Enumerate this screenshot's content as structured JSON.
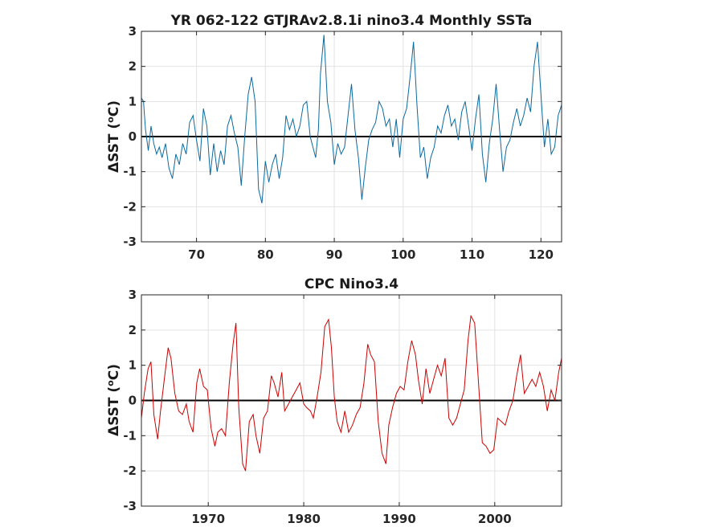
{
  "figure": {
    "background": "#ffffff"
  },
  "chart_data": [
    {
      "type": "line",
      "title": "YR 062-122 GTJRAv2.8.1i nino3.4 Monthly SSTa",
      "ylabel_parts": [
        "ΔSST (",
        "o",
        "C)"
      ],
      "xlim": [
        62,
        123
      ],
      "ylim": [
        -3,
        3
      ],
      "xticks": [
        70,
        80,
        90,
        100,
        110,
        120
      ],
      "xtick_labels": [
        "70",
        "80",
        "90",
        "100",
        "110",
        "120"
      ],
      "yticks": [
        -3,
        -2,
        -1,
        0,
        1,
        2,
        3
      ],
      "ytick_labels": [
        "-3",
        "-2",
        "-1",
        "0",
        "1",
        "2",
        "3"
      ],
      "grid": true,
      "zero_line": true,
      "color": "#0a6aa0",
      "series": [
        {
          "x": [
            62.0,
            62.3,
            62.6,
            63.0,
            63.4,
            63.8,
            64.2,
            64.6,
            65.0,
            65.5,
            66.0,
            66.5,
            67.0,
            67.5,
            68.0,
            68.5,
            69.0,
            69.5,
            70.0,
            70.5,
            71.0,
            71.5,
            72.0,
            72.5,
            73.0,
            73.5,
            74.0,
            74.5,
            75.0,
            75.5,
            76.0,
            76.5,
            77.0,
            77.5,
            78.0,
            78.5,
            79.0,
            79.5,
            80.0,
            80.5,
            81.0,
            81.5,
            82.0,
            82.5,
            83.0,
            83.5,
            84.0,
            84.5,
            85.0,
            85.5,
            86.0,
            86.5,
            86.9,
            87.3,
            87.7,
            88.0,
            88.5,
            89.0,
            89.5,
            90.0,
            90.5,
            91.0,
            91.5,
            92.0,
            92.5,
            93.0,
            93.5,
            94.0,
            94.5,
            95.0,
            95.5,
            96.0,
            96.5,
            97.0,
            97.5,
            98.0,
            98.5,
            99.0,
            99.5,
            100.0,
            100.5,
            101.0,
            101.5,
            102.0,
            102.5,
            103.0,
            103.5,
            104.0,
            104.5,
            105.0,
            105.5,
            106.0,
            106.5,
            107.0,
            107.5,
            108.0,
            108.5,
            109.0,
            109.5,
            110.0,
            110.5,
            111.0,
            111.5,
            112.0,
            112.5,
            113.0,
            113.5,
            114.0,
            114.5,
            115.0,
            115.5,
            116.0,
            116.5,
            117.0,
            117.5,
            118.0,
            118.5,
            119.0,
            119.5,
            120.0,
            120.5,
            121.0,
            121.5,
            122.0,
            122.5,
            123.0
          ],
          "y": [
            1.1,
            1.0,
            0.2,
            -0.4,
            0.3,
            -0.2,
            -0.5,
            -0.3,
            -0.6,
            -0.2,
            -0.9,
            -1.2,
            -0.5,
            -0.8,
            -0.2,
            -0.5,
            0.4,
            0.6,
            -0.1,
            -0.7,
            0.8,
            0.3,
            -1.1,
            -0.2,
            -1.0,
            -0.4,
            -0.8,
            0.3,
            0.6,
            0.1,
            -0.3,
            -1.4,
            0.0,
            1.2,
            1.7,
            1.0,
            -1.5,
            -1.9,
            -0.7,
            -1.3,
            -0.8,
            -0.5,
            -1.2,
            -0.6,
            0.6,
            0.2,
            0.5,
            0.0,
            0.3,
            0.9,
            1.0,
            0.0,
            -0.3,
            -0.6,
            0.2,
            1.8,
            2.9,
            1.0,
            0.4,
            -0.8,
            -0.2,
            -0.5,
            -0.3,
            0.6,
            1.5,
            0.2,
            -0.6,
            -1.8,
            -0.9,
            -0.1,
            0.2,
            0.4,
            1.0,
            0.8,
            0.3,
            0.5,
            -0.3,
            0.5,
            -0.6,
            0.5,
            0.8,
            1.7,
            2.7,
            0.9,
            -0.6,
            -0.3,
            -1.2,
            -0.6,
            -0.3,
            0.3,
            0.1,
            0.6,
            0.9,
            0.3,
            0.5,
            -0.1,
            0.7,
            1.0,
            0.3,
            -0.4,
            0.5,
            1.2,
            -0.5,
            -1.3,
            -0.2,
            0.5,
            1.5,
            0.2,
            -1.0,
            -0.3,
            -0.1,
            0.4,
            0.8,
            0.3,
            0.6,
            1.1,
            0.7,
            2.0,
            2.7,
            1.2,
            -0.3,
            0.5,
            -0.5,
            -0.3,
            0.6,
            0.9
          ]
        }
      ]
    },
    {
      "type": "line",
      "title": "CPC Nino3.4",
      "ylabel_parts": [
        "ΔSST (",
        "o",
        "C)"
      ],
      "xlim": [
        1963,
        2007
      ],
      "ylim": [
        -3,
        3
      ],
      "xticks": [
        1970,
        1980,
        1990,
        2000
      ],
      "xtick_labels": [
        "1970",
        "1980",
        "1990",
        "2000"
      ],
      "yticks": [
        -3,
        -2,
        -1,
        0,
        1,
        2,
        3
      ],
      "ytick_labels": [
        "-3",
        "-2",
        "-1",
        "0",
        "1",
        "2",
        "3"
      ],
      "grid": true,
      "zero_line": true,
      "color": "#cc0000",
      "series": [
        {
          "x": [
            1963.0,
            1963.3,
            1963.7,
            1964.0,
            1964.3,
            1964.7,
            1965.0,
            1965.4,
            1965.8,
            1966.1,
            1966.5,
            1966.9,
            1967.3,
            1967.7,
            1968.0,
            1968.4,
            1968.8,
            1969.1,
            1969.5,
            1969.9,
            1970.3,
            1970.7,
            1971.0,
            1971.4,
            1971.8,
            1972.2,
            1972.6,
            1972.9,
            1973.2,
            1973.6,
            1973.9,
            1974.3,
            1974.7,
            1975.0,
            1975.4,
            1975.8,
            1976.2,
            1976.6,
            1976.9,
            1977.3,
            1977.7,
            1978.0,
            1978.4,
            1978.8,
            1979.2,
            1979.6,
            1980.0,
            1980.3,
            1980.7,
            1981.0,
            1981.4,
            1981.8,
            1982.2,
            1982.6,
            1982.9,
            1983.2,
            1983.5,
            1983.9,
            1984.3,
            1984.7,
            1985.1,
            1985.5,
            1985.9,
            1986.3,
            1986.7,
            1987.0,
            1987.4,
            1987.8,
            1988.2,
            1988.6,
            1988.9,
            1989.3,
            1989.7,
            1990.1,
            1990.5,
            1990.9,
            1991.3,
            1991.7,
            1992.0,
            1992.4,
            1992.8,
            1993.2,
            1993.6,
            1994.0,
            1994.4,
            1994.8,
            1995.2,
            1995.6,
            1996.0,
            1996.4,
            1996.8,
            1997.2,
            1997.5,
            1997.9,
            1998.3,
            1998.7,
            1999.1,
            1999.5,
            1999.9,
            2000.3,
            2000.7,
            2001.1,
            2001.5,
            2001.9,
            2002.3,
            2002.7,
            2003.1,
            2003.5,
            2003.9,
            2004.3,
            2004.7,
            2005.1,
            2005.5,
            2005.9,
            2006.3,
            2006.7,
            2007.0
          ],
          "y": [
            -0.5,
            0.2,
            0.9,
            1.1,
            -0.4,
            -1.1,
            -0.3,
            0.6,
            1.5,
            1.2,
            0.2,
            -0.3,
            -0.4,
            -0.1,
            -0.6,
            -0.9,
            0.5,
            0.9,
            0.4,
            0.3,
            -0.8,
            -1.3,
            -0.9,
            -0.8,
            -1.0,
            0.5,
            1.6,
            2.2,
            -0.2,
            -1.8,
            -2.0,
            -0.6,
            -0.4,
            -1.0,
            -1.5,
            -0.5,
            -0.3,
            0.7,
            0.5,
            0.1,
            0.8,
            -0.3,
            -0.1,
            0.1,
            0.3,
            0.5,
            -0.1,
            -0.2,
            -0.3,
            -0.5,
            0.1,
            0.8,
            2.1,
            2.3,
            1.5,
            0.1,
            -0.6,
            -0.9,
            -0.3,
            -0.9,
            -0.7,
            -0.4,
            -0.2,
            0.5,
            1.6,
            1.3,
            1.1,
            -0.6,
            -1.5,
            -1.8,
            -0.7,
            -0.2,
            0.2,
            0.4,
            0.3,
            1.1,
            1.7,
            1.3,
            0.6,
            -0.1,
            0.9,
            0.2,
            0.6,
            1.0,
            0.7,
            1.2,
            -0.5,
            -0.7,
            -0.5,
            -0.1,
            0.3,
            1.7,
            2.4,
            2.2,
            0.5,
            -1.2,
            -1.3,
            -1.5,
            -1.4,
            -0.5,
            -0.6,
            -0.7,
            -0.3,
            0.0,
            0.7,
            1.3,
            0.2,
            0.4,
            0.6,
            0.4,
            0.8,
            0.4,
            -0.3,
            0.3,
            0.0,
            0.8,
            1.2
          ]
        }
      ]
    }
  ]
}
